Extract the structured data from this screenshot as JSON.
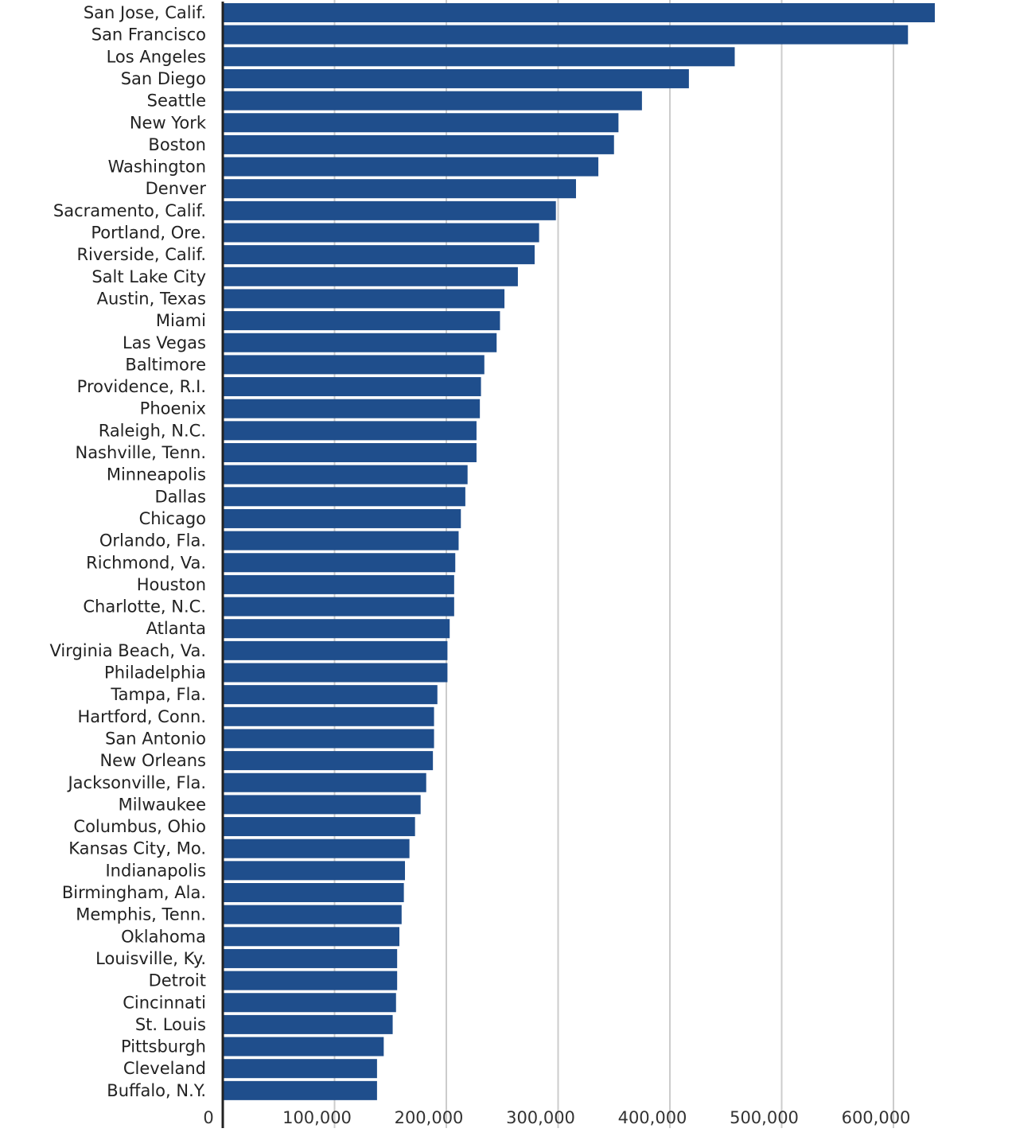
{
  "chart_data": {
    "type": "bar",
    "orientation": "horizontal",
    "title": "",
    "xlabel": "",
    "ylabel": "",
    "xlim": [
      0,
      640000
    ],
    "grid": true,
    "bar_color": "#1f4e8c",
    "categories": [
      "San Jose, Calif.",
      "San Francisco",
      "Los Angeles",
      "San Diego",
      "Seattle",
      "New York",
      "Boston",
      "Washington",
      "Denver",
      "Sacramento, Calif.",
      "Portland, Ore.",
      "Riverside, Calif.",
      "Salt Lake City",
      "Austin, Texas",
      "Miami",
      "Las Vegas",
      "Baltimore",
      "Providence, R.I.",
      "Phoenix",
      "Raleigh, N.C.",
      "Nashville, Tenn.",
      "Minneapolis",
      "Dallas",
      "Chicago",
      "Orlando, Fla.",
      "Richmond, Va.",
      "Houston",
      "Charlotte, N.C.",
      "Atlanta",
      "Virginia Beach, Va.",
      "Philadelphia",
      "Tampa, Fla.",
      "Hartford, Conn.",
      "San Antonio",
      "New Orleans",
      "Jacksonville, Fla.",
      "Milwaukee",
      "Columbus, Ohio",
      "Kansas City, Mo.",
      "Indianapolis",
      "Birmingham, Ala.",
      "Memphis, Tenn.",
      "Oklahoma",
      "Louisville, Ky.",
      "Detroit",
      "Cincinnati",
      "St. Louis",
      "Pittsburgh",
      "Cleveland",
      "Buffalo, N.Y."
    ],
    "values": [
      637000,
      613000,
      458000,
      417000,
      375000,
      354000,
      350000,
      336000,
      316000,
      298000,
      283000,
      279000,
      264000,
      252000,
      248000,
      245000,
      234000,
      231000,
      230000,
      227000,
      227000,
      219000,
      217000,
      213000,
      211000,
      208000,
      207000,
      207000,
      203000,
      201000,
      201000,
      192000,
      189000,
      189000,
      188000,
      182000,
      177000,
      172000,
      167000,
      163000,
      162000,
      160000,
      158000,
      156000,
      156000,
      155000,
      152000,
      144000,
      138000,
      138000
    ],
    "ticks": [
      0,
      100000,
      200000,
      300000,
      400000,
      500000,
      600000
    ],
    "tick_labels": [
      "0",
      "100,000",
      "200,000",
      "300,000",
      "400,000",
      "500,000",
      "600,000"
    ]
  }
}
